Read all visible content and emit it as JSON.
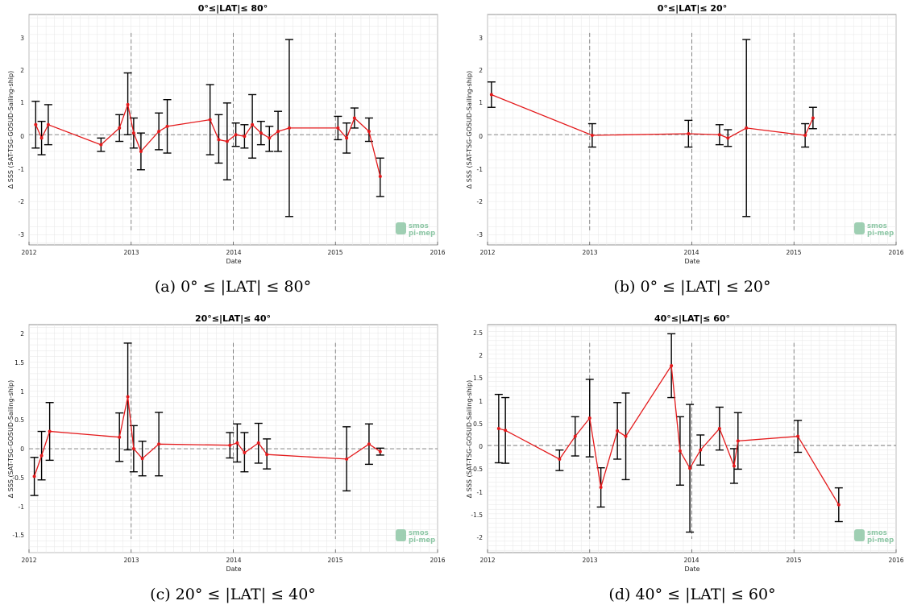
{
  "chart_data": [
    {
      "type": "line",
      "title": "0°≤|LAT|≤ 80°",
      "caption": "(a) 0° ≤ |LAT| ≤ 80°",
      "xlabel": "Date",
      "ylabel": "Δ SSS (SAT-TSG-GOSUD-Sailing-ship)",
      "xlim": [
        "2012-01-01",
        "2016-01-01"
      ],
      "ylim": [
        -3.3,
        3.6
      ],
      "xticks": [
        "2012",
        "2013",
        "2014",
        "2015",
        "2016"
      ],
      "yticks": [
        "3",
        "2",
        "1",
        "0",
        "-1",
        "-2",
        "-3"
      ],
      "grid": true,
      "series": [
        {
          "x": [
            "2012-01-25",
            "2012-02-15",
            "2012-03-10",
            "2012-09-15",
            "2012-11-20",
            "2012-12-20",
            "2013-01-10",
            "2013-02-05",
            "2013-04-10",
            "2013-05-10",
            "2013-10-10",
            "2013-11-10",
            "2013-12-10",
            "2014-01-10",
            "2014-02-10",
            "2014-03-10",
            "2014-04-10",
            "2014-05-10",
            "2014-06-10",
            "2014-07-20",
            "2015-01-10",
            "2015-02-10",
            "2015-03-10",
            "2015-05-01",
            "2015-06-10"
          ],
          "y": [
            0.3,
            -0.1,
            0.3,
            -0.3,
            0.2,
            0.9,
            0.05,
            -0.5,
            0.1,
            0.25,
            0.45,
            -0.15,
            -0.2,
            0.0,
            -0.05,
            0.3,
            0.05,
            -0.1,
            0.1,
            0.2,
            0.2,
            -0.1,
            0.5,
            0.1,
            -1.25
          ],
          "err_low": [
            0.7,
            0.5,
            0.6,
            0.2,
            0.4,
            0.9,
            0.45,
            0.55,
            0.55,
            0.8,
            1.05,
            0.7,
            1.15,
            0.35,
            0.35,
            1.0,
            0.35,
            0.4,
            0.6,
            2.65,
            0.35,
            0.45,
            0.3,
            0.3,
            0.6
          ],
          "err_high": [
            0.7,
            0.5,
            0.6,
            0.2,
            0.4,
            0.95,
            0.45,
            0.55,
            0.55,
            0.8,
            1.05,
            0.75,
            1.15,
            0.35,
            0.35,
            0.9,
            0.35,
            0.35,
            0.6,
            2.65,
            0.35,
            0.45,
            0.3,
            0.4,
            0.55
          ]
        }
      ]
    },
    {
      "type": "line",
      "title": "0°≤|LAT|≤ 20°",
      "caption": "(b) 0° ≤ |LAT| ≤ 20°",
      "xlabel": "Date",
      "ylabel": "Δ SSS (SAT-TSG-GOSUD-Sailing-ship)",
      "xlim": [
        "2012-01-01",
        "2016-01-01"
      ],
      "ylim": [
        -3.3,
        3.6
      ],
      "xticks": [
        "2012",
        "2013",
        "2014",
        "2015",
        "2016"
      ],
      "yticks": [
        "3",
        "2",
        "1",
        "0",
        "-1",
        "-2",
        "-3"
      ],
      "grid": true,
      "series": [
        {
          "x": [
            "2012-01-15",
            "2013-01-10",
            "2013-12-20",
            "2014-04-10",
            "2014-05-10",
            "2014-07-15",
            "2015-02-10",
            "2015-03-10"
          ],
          "y": [
            1.2,
            -0.02,
            0.03,
            0.0,
            -0.1,
            0.2,
            -0.02,
            0.5
          ],
          "err_low": [
            0.38,
            0.35,
            0.4,
            0.3,
            0.25,
            2.65,
            0.35,
            0.32
          ],
          "err_high": [
            0.38,
            0.35,
            0.4,
            0.3,
            0.25,
            2.65,
            0.35,
            0.32
          ]
        }
      ]
    },
    {
      "type": "line",
      "title": "20°≤|LAT|≤ 40°",
      "caption": "(c) 20° ≤ |LAT| ≤ 40°",
      "xlabel": "Date",
      "ylabel": "Δ SSS (SAT-TSG-GOSUD-Sailing-ship)",
      "xlim": [
        "2012-01-01",
        "2016-01-01"
      ],
      "ylim": [
        -1.8,
        2.15
      ],
      "xticks": [
        "2012",
        "2013",
        "2014",
        "2015",
        "2016"
      ],
      "yticks": [
        "2",
        "1.5",
        "1",
        "0.5",
        "0",
        "-0.5",
        "-1",
        "-1.5"
      ],
      "grid": true,
      "series": [
        {
          "x": [
            "2012-01-20",
            "2012-02-15",
            "2012-03-15",
            "2012-11-20",
            "2012-12-20",
            "2013-01-10",
            "2013-02-10",
            "2013-04-10",
            "2013-12-20",
            "2014-01-15",
            "2014-02-10",
            "2014-04-01",
            "2014-05-01",
            "2015-02-10",
            "2015-05-01",
            "2015-06-10"
          ],
          "y": [
            -0.48,
            -0.12,
            0.3,
            0.2,
            0.9,
            0.0,
            -0.17,
            0.08,
            0.06,
            0.1,
            -0.07,
            0.1,
            -0.1,
            -0.18,
            0.08,
            -0.05
          ],
          "err_low": [
            0.33,
            0.42,
            0.5,
            0.42,
            0.92,
            0.4,
            0.3,
            0.55,
            0.22,
            0.33,
            0.33,
            0.35,
            0.25,
            0.55,
            0.35,
            0.06
          ],
          "err_high": [
            0.33,
            0.42,
            0.5,
            0.42,
            0.93,
            0.4,
            0.3,
            0.55,
            0.22,
            0.33,
            0.35,
            0.34,
            0.27,
            0.56,
            0.35,
            0.06
          ]
        }
      ]
    },
    {
      "type": "line",
      "title": "40°≤|LAT|≤ 60°",
      "caption": "(d) 40° ≤ |LAT| ≤ 60°",
      "xlabel": "Date",
      "ylabel": "Δ SSS (SAT-TSG-GOSUD-Sailing-ship)",
      "xlim": [
        "2012-01-01",
        "2016-01-01"
      ],
      "ylim": [
        -2.35,
        2.65
      ],
      "xticks": [
        "2012",
        "2013",
        "2014",
        "2015",
        "2016"
      ],
      "yticks": [
        "2.5",
        "2",
        "1.5",
        "1",
        "0.5",
        "0",
        "-0.5",
        "-1",
        "-1.5",
        "-2"
      ],
      "grid": true,
      "series": [
        {
          "x": [
            "2012-02-10",
            "2012-03-05",
            "2012-09-15",
            "2012-11-10",
            "2013-01-01",
            "2013-02-10",
            "2013-04-10",
            "2013-05-10",
            "2013-10-20",
            "2013-11-20",
            "2013-12-25",
            "2014-02-01",
            "2014-04-10",
            "2014-06-01",
            "2014-06-15",
            "2015-01-15",
            "2015-06-10"
          ],
          "y": [
            0.37,
            0.33,
            -0.3,
            0.2,
            0.6,
            -0.92,
            0.32,
            0.2,
            1.75,
            -0.12,
            -0.5,
            -0.1,
            0.37,
            -0.45,
            0.1,
            0.2,
            -1.3
          ],
          "err_low": [
            0.75,
            0.72,
            0.25,
            0.43,
            0.85,
            0.43,
            0.62,
            0.95,
            0.7,
            0.75,
            1.4,
            0.33,
            0.47,
            0.38,
            0.62,
            0.35,
            0.37
          ],
          "err_high": [
            0.75,
            0.72,
            0.2,
            0.43,
            0.85,
            0.43,
            0.62,
            0.95,
            0.7,
            0.75,
            1.4,
            0.33,
            0.47,
            0.38,
            0.62,
            0.35,
            0.37
          ]
        }
      ]
    }
  ],
  "logo": {
    "line1": "smos",
    "line2": "pi-mep"
  },
  "colors": {
    "line": "#e41a1c",
    "errorbar": "#000000",
    "guide": "#777777",
    "grid": "#e6e6e6",
    "logo": "#8ec7a6"
  }
}
